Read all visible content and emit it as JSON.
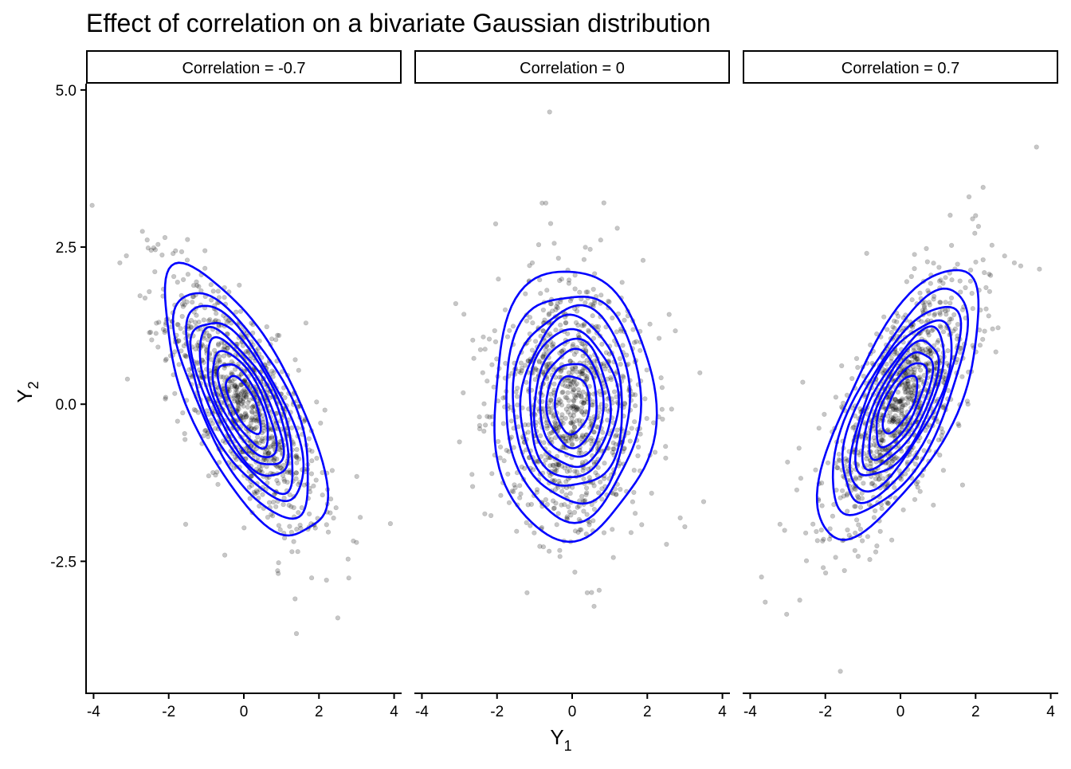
{
  "chart_data": {
    "type": "scatter",
    "title": "Effect of correlation on a bivariate Gaussian distribution",
    "xlabel": {
      "main": "Y",
      "subscript": "1"
    },
    "ylabel": {
      "main": "Y",
      "subscript": "2"
    },
    "xlim": [
      -4.2,
      4.2
    ],
    "ylim": [
      -4.6,
      5.1
    ],
    "x_ticks": [
      -4,
      -2,
      0,
      2,
      4
    ],
    "x_tick_labels": [
      "-4",
      "-2",
      "0",
      "2",
      "4"
    ],
    "y_ticks": [
      5.0,
      2.5,
      0.0,
      -2.5
    ],
    "y_tick_labels": [
      "5.0",
      "2.5",
      "0.0",
      "-2.5"
    ],
    "point_color": "#000000",
    "point_alpha": 0.22,
    "contour_color": "#0000ff",
    "contour_levels_approx": 9,
    "n_points_per_panel_approx": 1000,
    "grid": false,
    "panels": [
      {
        "label": "Correlation = -0.7",
        "correlation": -0.7,
        "mean": [
          0,
          0
        ],
        "notable_points": [
          {
            "x": 1.4,
            "y": -3.65
          },
          {
            "x": 2.5,
            "y": -3.4
          },
          {
            "x": -3.1,
            "y": 0.4
          },
          {
            "x": -3.3,
            "y": 2.25
          },
          {
            "x": 3.9,
            "y": -1.9
          },
          {
            "x": -2.7,
            "y": 2.75
          },
          {
            "x": 2.2,
            "y": -2.8
          },
          {
            "x": -1.5,
            "y": 2.62
          },
          {
            "x": 3.1,
            "y": -1.8
          },
          {
            "x": 0.9,
            "y": -2.65
          }
        ]
      },
      {
        "label": "Correlation = 0",
        "correlation": 0.0,
        "mean": [
          0,
          0
        ],
        "notable_points": [
          {
            "x": -0.6,
            "y": 4.65
          },
          {
            "x": -0.8,
            "y": 3.2
          },
          {
            "x": -0.7,
            "y": 3.2
          },
          {
            "x": -3.1,
            "y": 1.6
          },
          {
            "x": 3.4,
            "y": 0.5
          },
          {
            "x": -3.0,
            "y": -0.6
          },
          {
            "x": 3.5,
            "y": -1.55
          },
          {
            "x": 0.4,
            "y": -3.0
          },
          {
            "x": -1.2,
            "y": -3.0
          },
          {
            "x": 1.2,
            "y": 2.8
          },
          {
            "x": 3.0,
            "y": -1.95
          }
        ]
      },
      {
        "label": "Correlation = 0.7",
        "correlation": 0.7,
        "mean": [
          0,
          0
        ],
        "notable_points": [
          {
            "x": -1.6,
            "y": -4.25
          },
          {
            "x": -3.6,
            "y": -3.15
          },
          {
            "x": -3.7,
            "y": -2.75
          },
          {
            "x": 2.2,
            "y": 3.45
          },
          {
            "x": 3.7,
            "y": 2.15
          },
          {
            "x": 3.2,
            "y": 2.2
          },
          {
            "x": -2.6,
            "y": 0.35
          },
          {
            "x": -0.9,
            "y": 2.4
          },
          {
            "x": -2.7,
            "y": -0.7
          },
          {
            "x": 2.0,
            "y": 3.0
          }
        ]
      }
    ]
  }
}
